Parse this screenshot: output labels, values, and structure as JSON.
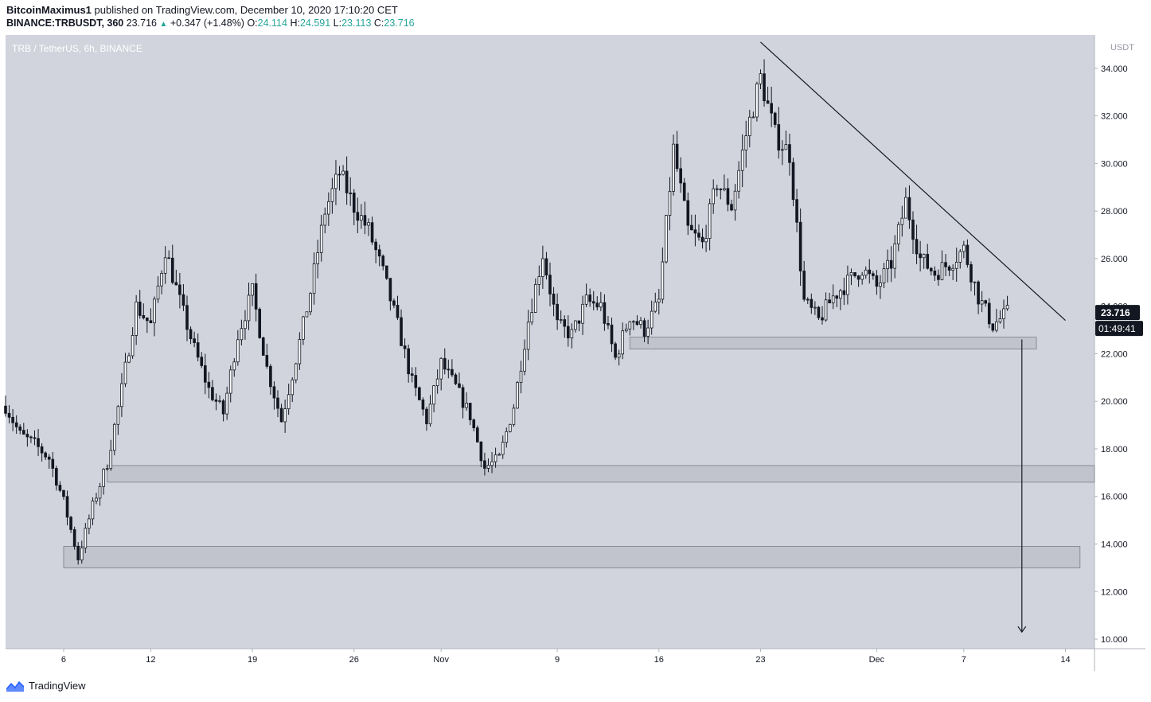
{
  "header": {
    "author": "BitcoinMaximus1",
    "published_text": "published on TradingView.com, December 10, 2020 17:10:20 CET",
    "symbol": "BINANCE:TRBUSDT, 360",
    "last": "23.716",
    "change": "+0.347 (+1.48%)",
    "o_label": "O:",
    "o_val": "24.114",
    "h_label": "H:",
    "h_val": "24.591",
    "l_label": "L:",
    "l_val": "23.113",
    "c_label": "C:",
    "c_val": "23.716"
  },
  "pane_title": "TRB / TetherUS, 6h, BINANCE",
  "footer": {
    "brand": "TradingView"
  },
  "colors": {
    "pane_bg": "#d1d4dc",
    "candle": "#131722",
    "zone_fill": "#c1c4cc",
    "zone_border": "#8a8d96",
    "price_tag_bg": "#131722"
  },
  "chart_data": {
    "type": "candlestick",
    "y_unit": "USDT",
    "ylim": [
      9.6,
      35.4
    ],
    "y_ticks": [
      10,
      12,
      14,
      16,
      18,
      20,
      22,
      24,
      26,
      28,
      30,
      32,
      34
    ],
    "y_tick_labels": [
      "10.000",
      "12.000",
      "14.000",
      "16.000",
      "18.000",
      "20.000",
      "22.000",
      "24.000",
      "26.000",
      "28.000",
      "30.000",
      "32.000",
      "34.000"
    ],
    "x_range_days": [
      "2020-10-02",
      "2020-12-16"
    ],
    "x_ticks": [
      {
        "date": "2020-10-06",
        "label": "6"
      },
      {
        "date": "2020-10-12",
        "label": "12"
      },
      {
        "date": "2020-10-19",
        "label": "19"
      },
      {
        "date": "2020-10-26",
        "label": "26"
      },
      {
        "date": "2020-11-01",
        "label": "Nov"
      },
      {
        "date": "2020-11-09",
        "label": "9"
      },
      {
        "date": "2020-11-16",
        "label": "16"
      },
      {
        "date": "2020-11-23",
        "label": "23"
      },
      {
        "date": "2020-12-01",
        "label": "Dec"
      },
      {
        "date": "2020-12-07",
        "label": "7"
      },
      {
        "date": "2020-12-14",
        "label": "14"
      }
    ],
    "last_price": "23.716",
    "countdown": "01:49:41",
    "price_path": [
      [
        "2020-10-02",
        19.8
      ],
      [
        "2020-10-03",
        18.6
      ],
      [
        "2020-10-04",
        18.2
      ],
      [
        "2020-10-05",
        17.6
      ],
      [
        "2020-10-06",
        15.8
      ],
      [
        "2020-10-07",
        13.4
      ],
      [
        "2020-10-08",
        15.6
      ],
      [
        "2020-10-09",
        17.4
      ],
      [
        "2020-10-10",
        20.5
      ],
      [
        "2020-10-11",
        24.0
      ],
      [
        "2020-10-12",
        23.2
      ],
      [
        "2020-10-13",
        26.4
      ],
      [
        "2020-10-14",
        24.2
      ],
      [
        "2020-10-15",
        22.2
      ],
      [
        "2020-10-16",
        20.5
      ],
      [
        "2020-10-17",
        19.5
      ],
      [
        "2020-10-18",
        22.8
      ],
      [
        "2020-10-19",
        24.6
      ],
      [
        "2020-10-20",
        21.4
      ],
      [
        "2020-10-21",
        19.2
      ],
      [
        "2020-10-22",
        21.8
      ],
      [
        "2020-10-23",
        24.6
      ],
      [
        "2020-10-24",
        28.0
      ],
      [
        "2020-10-25",
        29.6
      ],
      [
        "2020-10-26",
        28.2
      ],
      [
        "2020-10-27",
        27.2
      ],
      [
        "2020-10-28",
        25.4
      ],
      [
        "2020-10-29",
        23.2
      ],
      [
        "2020-10-30",
        20.8
      ],
      [
        "2020-10-31",
        19.2
      ],
      [
        "2020-11-01",
        21.6
      ],
      [
        "2020-11-02",
        20.6
      ],
      [
        "2020-11-03",
        19.4
      ],
      [
        "2020-11-04",
        17.2
      ],
      [
        "2020-11-05",
        17.6
      ],
      [
        "2020-11-06",
        19.8
      ],
      [
        "2020-11-07",
        23.4
      ],
      [
        "2020-11-08",
        26.2
      ],
      [
        "2020-11-09",
        23.2
      ],
      [
        "2020-11-10",
        22.8
      ],
      [
        "2020-11-11",
        24.2
      ],
      [
        "2020-11-12",
        24.0
      ],
      [
        "2020-11-13",
        21.8
      ],
      [
        "2020-11-14",
        23.6
      ],
      [
        "2020-11-15",
        23.0
      ],
      [
        "2020-11-16",
        24.2
      ],
      [
        "2020-11-17",
        30.6
      ],
      [
        "2020-11-18",
        27.2
      ],
      [
        "2020-11-19",
        26.6
      ],
      [
        "2020-11-20",
        29.2
      ],
      [
        "2020-11-21",
        28.2
      ],
      [
        "2020-11-22",
        31.2
      ],
      [
        "2020-11-23",
        33.6
      ],
      [
        "2020-11-24",
        31.2
      ],
      [
        "2020-11-25",
        30.4
      ],
      [
        "2020-11-26",
        24.2
      ],
      [
        "2020-11-27",
        23.4
      ],
      [
        "2020-11-28",
        24.4
      ],
      [
        "2020-11-29",
        25.0
      ],
      [
        "2020-11-30",
        25.6
      ],
      [
        "2020-12-01",
        24.8
      ],
      [
        "2020-12-02",
        25.8
      ],
      [
        "2020-12-03",
        28.4
      ],
      [
        "2020-12-04",
        26.0
      ],
      [
        "2020-12-05",
        25.4
      ],
      [
        "2020-12-06",
        25.8
      ],
      [
        "2020-12-07",
        26.4
      ],
      [
        "2020-12-08",
        24.4
      ],
      [
        "2020-12-09",
        23.2
      ],
      [
        "2020-12-10",
        23.716
      ]
    ],
    "zones": [
      {
        "label": "support-zone-upper",
        "x0": "2020-11-14",
        "x1": "2020-12-12",
        "y0": 22.2,
        "y1": 22.7
      },
      {
        "label": "support-zone-mid",
        "x0": "2020-10-09",
        "x1": "2020-12-16",
        "y0": 16.6,
        "y1": 17.3
      },
      {
        "label": "support-zone-lower",
        "x0": "2020-10-06",
        "x1": "2020-12-15",
        "y0": 13.0,
        "y1": 13.9
      }
    ],
    "trendline": {
      "x0": "2020-11-23",
      "y0": 35.1,
      "x1": "2020-12-14",
      "y1": 23.4
    },
    "projection_arrow": {
      "x": "2020-12-11",
      "y0": 22.6,
      "y1": 10.3
    }
  }
}
